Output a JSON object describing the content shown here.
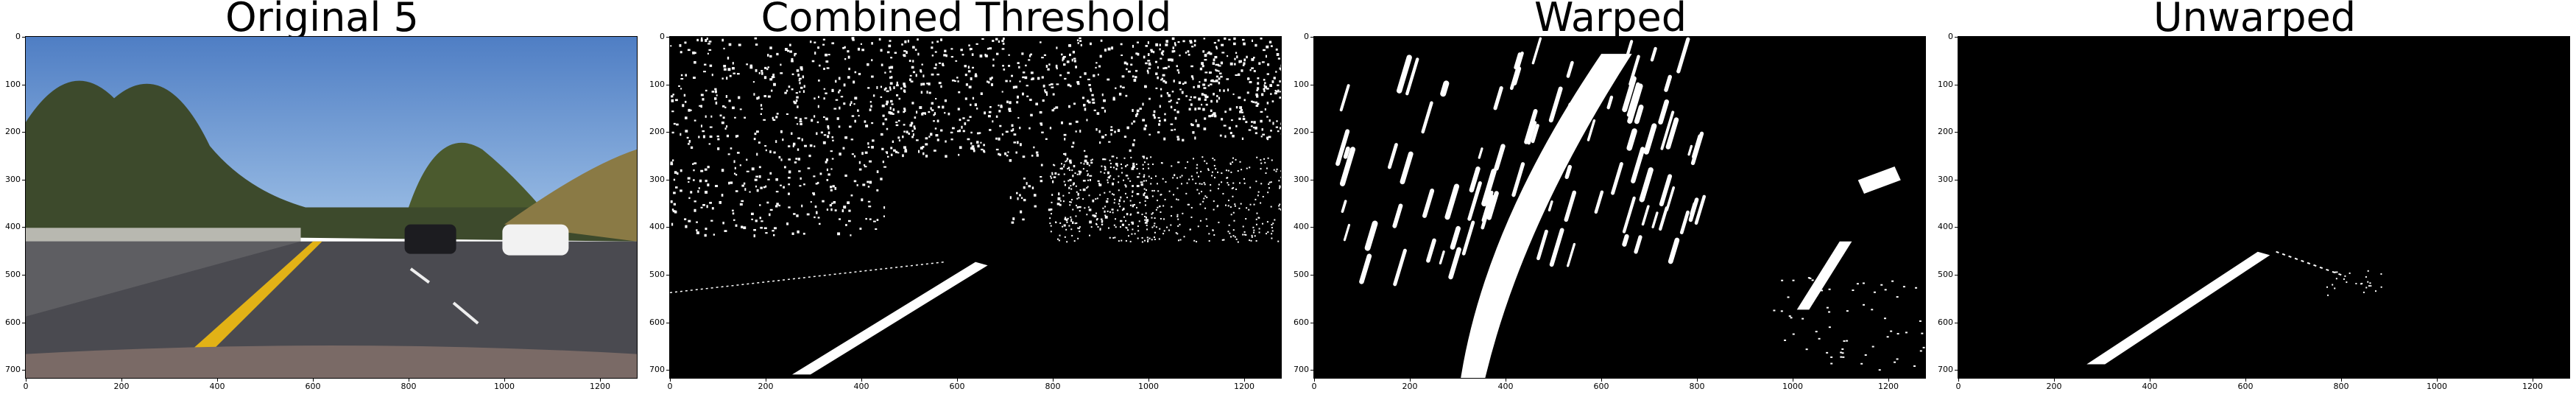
{
  "panels": [
    {
      "title": "Original 5",
      "kind": "photo"
    },
    {
      "title": "Combined Threshold",
      "kind": "threshold"
    },
    {
      "title": "Warped",
      "kind": "warped"
    },
    {
      "title": "Unwarped",
      "kind": "unwarped"
    }
  ],
  "axes": {
    "x_ticks": [
      "0",
      "200",
      "400",
      "600",
      "800",
      "1000",
      "1200"
    ],
    "y_ticks": [
      "0",
      "100",
      "200",
      "300",
      "400",
      "500",
      "600",
      "700"
    ]
  },
  "colors": {
    "sky": "#5d86c8",
    "lane_yellow": "#e2b216",
    "road": "#4a4a50",
    "threshold_bg": "#000000",
    "threshold_fg": "#ffffff"
  }
}
